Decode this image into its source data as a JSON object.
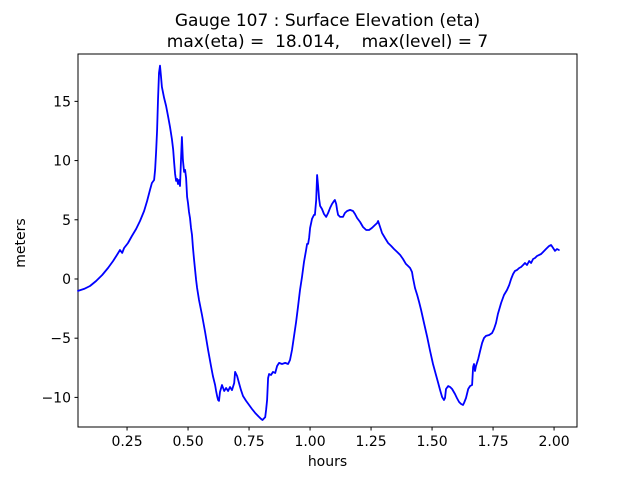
{
  "figure": {
    "background": "#ffffff",
    "text_color": "#000000",
    "spine_color": "#000000"
  },
  "chart_data": {
    "type": "line",
    "title": "Gauge 107 : Surface Elevation (eta)",
    "subtitle": "max(eta) =  18.014,    max(level) = 7",
    "max_eta": 18.014,
    "max_level": 7,
    "xlabel": "hours",
    "ylabel": "meters",
    "xlim": [
      0.049,
      2.094
    ],
    "ylim": [
      -12.5,
      19.0
    ],
    "grid": false,
    "legend_position": "none",
    "xticks": [
      {
        "v": 0.25,
        "label": "0.25"
      },
      {
        "v": 0.5,
        "label": "0.50"
      },
      {
        "v": 0.75,
        "label": "0.75"
      },
      {
        "v": 1.0,
        "label": "1.00"
      },
      {
        "v": 1.25,
        "label": "1.25"
      },
      {
        "v": 1.5,
        "label": "1.50"
      },
      {
        "v": 1.75,
        "label": "1.75"
      },
      {
        "v": 2.0,
        "label": "2.00"
      }
    ],
    "yticks": [
      {
        "v": -10,
        "label": "−10"
      },
      {
        "v": -5,
        "label": "−5"
      },
      {
        "v": 0,
        "label": "0"
      },
      {
        "v": 5,
        "label": "5"
      },
      {
        "v": 10,
        "label": "10"
      },
      {
        "v": 15,
        "label": "15"
      }
    ],
    "series": [
      {
        "name": "surface-elevation-eta",
        "color": "#0000ff",
        "line_width": 1.8,
        "points": [
          [
            0.049,
            -1.01
          ],
          [
            0.074,
            -0.84
          ],
          [
            0.098,
            -0.59
          ],
          [
            0.123,
            -0.17
          ],
          [
            0.148,
            0.34
          ],
          [
            0.172,
            0.93
          ],
          [
            0.193,
            1.52
          ],
          [
            0.209,
            2.03
          ],
          [
            0.221,
            2.45
          ],
          [
            0.23,
            2.2
          ],
          [
            0.238,
            2.62
          ],
          [
            0.254,
            3.04
          ],
          [
            0.27,
            3.63
          ],
          [
            0.287,
            4.22
          ],
          [
            0.303,
            4.9
          ],
          [
            0.32,
            5.74
          ],
          [
            0.332,
            6.59
          ],
          [
            0.344,
            7.52
          ],
          [
            0.352,
            8.11
          ],
          [
            0.361,
            8.36
          ],
          [
            0.365,
            9.21
          ],
          [
            0.369,
            10.73
          ],
          [
            0.373,
            12.58
          ],
          [
            0.377,
            15.12
          ],
          [
            0.381,
            17.4
          ],
          [
            0.385,
            18.01
          ],
          [
            0.389,
            17.1
          ],
          [
            0.393,
            16.22
          ],
          [
            0.402,
            15.29
          ],
          [
            0.41,
            14.61
          ],
          [
            0.418,
            13.77
          ],
          [
            0.426,
            12.84
          ],
          [
            0.434,
            11.82
          ],
          [
            0.439,
            10.9
          ],
          [
            0.443,
            9.88
          ],
          [
            0.447,
            8.87
          ],
          [
            0.451,
            8.28
          ],
          [
            0.455,
            8.45
          ],
          [
            0.459,
            8.02
          ],
          [
            0.463,
            8.36
          ],
          [
            0.467,
            7.85
          ],
          [
            0.471,
            10.05
          ],
          [
            0.475,
            11.99
          ],
          [
            0.479,
            10.05
          ],
          [
            0.484,
            9.04
          ],
          [
            0.488,
            9.21
          ],
          [
            0.492,
            8.53
          ],
          [
            0.496,
            6.93
          ],
          [
            0.5,
            6.42
          ],
          [
            0.504,
            5.66
          ],
          [
            0.508,
            5.15
          ],
          [
            0.512,
            4.31
          ],
          [
            0.516,
            3.72
          ],
          [
            0.52,
            2.7
          ],
          [
            0.524,
            1.77
          ],
          [
            0.529,
            0.76
          ],
          [
            0.533,
            -0.08
          ],
          [
            0.537,
            -0.76
          ],
          [
            0.545,
            -1.77
          ],
          [
            0.557,
            -3.04
          ],
          [
            0.57,
            -4.48
          ],
          [
            0.582,
            -6.0
          ],
          [
            0.594,
            -7.35
          ],
          [
            0.602,
            -8.19
          ],
          [
            0.611,
            -8.95
          ],
          [
            0.615,
            -9.46
          ],
          [
            0.619,
            -9.88
          ],
          [
            0.623,
            -10.22
          ],
          [
            0.627,
            -10.3
          ],
          [
            0.631,
            -9.54
          ],
          [
            0.639,
            -8.95
          ],
          [
            0.648,
            -9.46
          ],
          [
            0.656,
            -9.21
          ],
          [
            0.664,
            -9.46
          ],
          [
            0.672,
            -9.12
          ],
          [
            0.68,
            -9.38
          ],
          [
            0.689,
            -8.78
          ],
          [
            0.693,
            -7.85
          ],
          [
            0.701,
            -8.19
          ],
          [
            0.709,
            -8.78
          ],
          [
            0.717,
            -9.38
          ],
          [
            0.725,
            -9.88
          ],
          [
            0.738,
            -10.3
          ],
          [
            0.75,
            -10.64
          ],
          [
            0.762,
            -10.98
          ],
          [
            0.775,
            -11.32
          ],
          [
            0.787,
            -11.57
          ],
          [
            0.799,
            -11.82
          ],
          [
            0.805,
            -11.91
          ],
          [
            0.816,
            -11.66
          ],
          [
            0.82,
            -11.06
          ],
          [
            0.824,
            -10.22
          ],
          [
            0.828,
            -8.36
          ],
          [
            0.832,
            -8.02
          ],
          [
            0.84,
            -8.11
          ],
          [
            0.848,
            -7.85
          ],
          [
            0.857,
            -7.94
          ],
          [
            0.865,
            -7.35
          ],
          [
            0.873,
            -7.09
          ],
          [
            0.885,
            -7.18
          ],
          [
            0.898,
            -7.09
          ],
          [
            0.91,
            -7.18
          ],
          [
            0.918,
            -6.84
          ],
          [
            0.926,
            -6.0
          ],
          [
            0.934,
            -4.9
          ],
          [
            0.943,
            -3.63
          ],
          [
            0.951,
            -2.28
          ],
          [
            0.959,
            -0.93
          ],
          [
            0.967,
            0.17
          ],
          [
            0.975,
            1.44
          ],
          [
            0.984,
            2.45
          ],
          [
            0.988,
            2.96
          ],
          [
            0.992,
            2.96
          ],
          [
            0.996,
            3.46
          ],
          [
            1.0,
            4.31
          ],
          [
            1.008,
            5.07
          ],
          [
            1.016,
            5.41
          ],
          [
            1.02,
            5.41
          ],
          [
            1.025,
            6.67
          ],
          [
            1.029,
            8.78
          ],
          [
            1.033,
            7.85
          ],
          [
            1.037,
            6.76
          ],
          [
            1.041,
            6.17
          ],
          [
            1.049,
            5.91
          ],
          [
            1.057,
            5.49
          ],
          [
            1.066,
            5.24
          ],
          [
            1.074,
            5.57
          ],
          [
            1.082,
            6.0
          ],
          [
            1.09,
            6.33
          ],
          [
            1.098,
            6.59
          ],
          [
            1.102,
            6.67
          ],
          [
            1.107,
            6.33
          ],
          [
            1.111,
            5.83
          ],
          [
            1.115,
            5.41
          ],
          [
            1.123,
            5.24
          ],
          [
            1.135,
            5.24
          ],
          [
            1.143,
            5.57
          ],
          [
            1.152,
            5.74
          ],
          [
            1.164,
            5.83
          ],
          [
            1.176,
            5.74
          ],
          [
            1.184,
            5.49
          ],
          [
            1.193,
            5.15
          ],
          [
            1.205,
            4.81
          ],
          [
            1.217,
            4.39
          ],
          [
            1.23,
            4.14
          ],
          [
            1.242,
            4.14
          ],
          [
            1.254,
            4.31
          ],
          [
            1.266,
            4.56
          ],
          [
            1.275,
            4.73
          ],
          [
            1.279,
            4.9
          ],
          [
            1.287,
            4.39
          ],
          [
            1.295,
            3.89
          ],
          [
            1.307,
            3.46
          ],
          [
            1.32,
            3.04
          ],
          [
            1.332,
            2.79
          ],
          [
            1.344,
            2.53
          ],
          [
            1.357,
            2.28
          ],
          [
            1.369,
            2.03
          ],
          [
            1.381,
            1.69
          ],
          [
            1.393,
            1.27
          ],
          [
            1.402,
            1.1
          ],
          [
            1.41,
            0.93
          ],
          [
            1.418,
            0.59
          ],
          [
            1.422,
            0.08
          ],
          [
            1.43,
            -0.76
          ],
          [
            1.439,
            -1.35
          ],
          [
            1.447,
            -1.94
          ],
          [
            1.455,
            -2.62
          ],
          [
            1.467,
            -3.72
          ],
          [
            1.48,
            -4.9
          ],
          [
            1.492,
            -6.08
          ],
          [
            1.504,
            -7.18
          ],
          [
            1.516,
            -8.11
          ],
          [
            1.525,
            -8.78
          ],
          [
            1.533,
            -9.38
          ],
          [
            1.541,
            -9.97
          ],
          [
            1.549,
            -10.22
          ],
          [
            1.553,
            -10.05
          ],
          [
            1.557,
            -9.29
          ],
          [
            1.566,
            -9.04
          ],
          [
            1.574,
            -9.12
          ],
          [
            1.582,
            -9.29
          ],
          [
            1.594,
            -9.71
          ],
          [
            1.602,
            -10.05
          ],
          [
            1.611,
            -10.39
          ],
          [
            1.619,
            -10.56
          ],
          [
            1.627,
            -10.64
          ],
          [
            1.631,
            -10.47
          ],
          [
            1.639,
            -10.05
          ],
          [
            1.648,
            -9.29
          ],
          [
            1.656,
            -9.04
          ],
          [
            1.664,
            -8.95
          ],
          [
            1.668,
            -7.43
          ],
          [
            1.672,
            -7.18
          ],
          [
            1.676,
            -7.77
          ],
          [
            1.68,
            -7.35
          ],
          [
            1.689,
            -6.76
          ],
          [
            1.697,
            -6.08
          ],
          [
            1.705,
            -5.41
          ],
          [
            1.713,
            -4.98
          ],
          [
            1.721,
            -4.81
          ],
          [
            1.734,
            -4.73
          ],
          [
            1.746,
            -4.56
          ],
          [
            1.754,
            -4.22
          ],
          [
            1.762,
            -3.72
          ],
          [
            1.77,
            -2.96
          ],
          [
            1.783,
            -2.03
          ],
          [
            1.795,
            -1.35
          ],
          [
            1.807,
            -0.93
          ],
          [
            1.816,
            -0.51
          ],
          [
            1.824,
            0.0
          ],
          [
            1.832,
            0.42
          ],
          [
            1.84,
            0.68
          ],
          [
            1.848,
            0.76
          ],
          [
            1.857,
            0.93
          ],
          [
            1.865,
            1.01
          ],
          [
            1.873,
            1.18
          ],
          [
            1.881,
            1.35
          ],
          [
            1.889,
            1.18
          ],
          [
            1.898,
            1.52
          ],
          [
            1.906,
            1.35
          ],
          [
            1.914,
            1.69
          ],
          [
            1.922,
            1.77
          ],
          [
            1.93,
            1.94
          ],
          [
            1.939,
            2.03
          ],
          [
            1.947,
            2.11
          ],
          [
            1.955,
            2.28
          ],
          [
            1.967,
            2.53
          ],
          [
            1.98,
            2.79
          ],
          [
            1.988,
            2.87
          ],
          [
            1.996,
            2.62
          ],
          [
            2.004,
            2.37
          ],
          [
            2.012,
            2.53
          ],
          [
            2.02,
            2.45
          ]
        ]
      }
    ]
  }
}
